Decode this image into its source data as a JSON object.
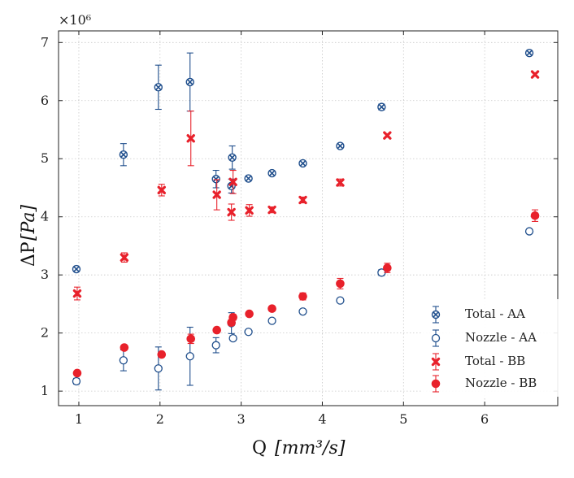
{
  "chart_data": {
    "type": "scatter",
    "title": "",
    "xlabel": "Q",
    "xlabel_unit": "[mm³/s]",
    "ylabel": "ΔP",
    "ylabel_unit": "[Pa]",
    "y_multiplier": "×10⁶",
    "xlim": [
      0.75,
      6.9
    ],
    "ylim": [
      0.75,
      7.2
    ],
    "x_ticks": [
      1,
      2,
      3,
      4,
      5,
      6
    ],
    "y_ticks": [
      1,
      2,
      3,
      4,
      5,
      6,
      7
    ],
    "grid": true,
    "legend_position": "bottom-right",
    "colors": {
      "AA": "#1f4e8c",
      "BB": "#e8212b"
    },
    "series": [
      {
        "name": "Total - AA",
        "marker": "x-circle",
        "color": "#1f4e8c",
        "x": [
          0.97,
          1.55,
          1.98,
          2.37,
          2.69,
          2.88,
          2.89,
          3.09,
          3.38,
          3.76,
          4.22,
          4.73,
          6.55
        ],
        "y": [
          3.1,
          5.07,
          6.23,
          6.32,
          4.65,
          4.53,
          5.02,
          4.66,
          4.75,
          4.92,
          5.22,
          5.89,
          6.82
        ],
        "err": [
          0.03,
          0.19,
          0.38,
          0.5,
          0.15,
          0.12,
          0.2,
          0.03,
          0.03,
          0.03,
          0.03,
          0.05,
          0.04
        ]
      },
      {
        "name": "Nozzle - AA",
        "marker": "open-circle",
        "color": "#1f4e8c",
        "x": [
          0.97,
          1.55,
          1.98,
          2.37,
          2.69,
          2.88,
          2.9,
          3.09,
          3.38,
          3.76,
          4.22,
          4.73,
          6.55
        ],
        "y": [
          1.17,
          1.53,
          1.39,
          1.6,
          1.79,
          2.17,
          1.91,
          2.02,
          2.21,
          2.37,
          2.56,
          3.04,
          3.75
        ],
        "err": [
          0.05,
          0.18,
          0.37,
          0.5,
          0.13,
          0.18,
          0.04,
          0.03,
          0.03,
          0.03,
          0.03,
          0.05,
          0.04
        ]
      },
      {
        "name": "Total - BB",
        "marker": "x-filled",
        "color": "#e8212b",
        "x": [
          0.98,
          1.56,
          2.02,
          2.38,
          2.7,
          2.88,
          2.9,
          3.1,
          3.38,
          3.76,
          4.22,
          4.8,
          6.62
        ],
        "y": [
          2.68,
          3.3,
          4.46,
          5.35,
          4.38,
          4.08,
          4.6,
          4.11,
          4.12,
          4.29,
          4.59,
          5.4,
          6.45
        ],
        "err": [
          0.11,
          0.08,
          0.1,
          0.47,
          0.26,
          0.14,
          0.2,
          0.1,
          0.05,
          0.05,
          0.06,
          0.03,
          0.03
        ]
      },
      {
        "name": "Nozzle - BB",
        "marker": "filled-circle",
        "color": "#e8212b",
        "x": [
          0.98,
          1.56,
          2.02,
          2.38,
          2.7,
          2.88,
          2.9,
          3.1,
          3.38,
          3.76,
          4.22,
          4.8,
          6.62
        ],
        "y": [
          1.31,
          1.75,
          1.63,
          1.9,
          2.05,
          2.18,
          2.27,
          2.33,
          2.42,
          2.63,
          2.85,
          3.12,
          4.02
        ],
        "err": [
          0.03,
          0.03,
          0.03,
          0.08,
          0.03,
          0.05,
          0.05,
          0.03,
          0.04,
          0.06,
          0.09,
          0.08,
          0.1
        ]
      }
    ]
  }
}
